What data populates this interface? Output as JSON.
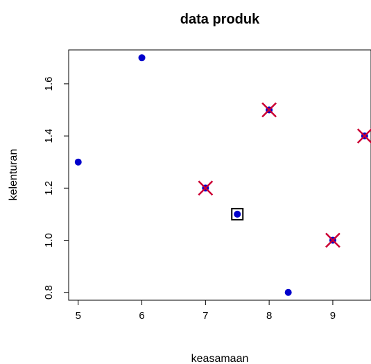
{
  "chart_data": {
    "type": "scatter",
    "title": "data produk",
    "xlabel": "keasamaan",
    "ylabel": "kelenturan",
    "xlim": [
      4.85,
      9.6
    ],
    "ylim": [
      0.77,
      1.73
    ],
    "xticks": [
      "5",
      "6",
      "7",
      "8",
      "9"
    ],
    "yticks": [
      "0.8",
      "1.0",
      "1.2",
      "1.4",
      "1.6"
    ],
    "grid": false,
    "point_color": "#0000cc",
    "marker_color": "#cc0033",
    "box_color": "#000000",
    "points": [
      {
        "x": 5.0,
        "y": 1.3,
        "mark": "none"
      },
      {
        "x": 6.0,
        "y": 1.7,
        "mark": "none"
      },
      {
        "x": 7.0,
        "y": 1.2,
        "mark": "cross"
      },
      {
        "x": 7.5,
        "y": 1.1,
        "mark": "box"
      },
      {
        "x": 8.0,
        "y": 1.5,
        "mark": "cross"
      },
      {
        "x": 8.3,
        "y": 0.8,
        "mark": "none"
      },
      {
        "x": 9.0,
        "y": 1.0,
        "mark": "cross"
      },
      {
        "x": 9.5,
        "y": 1.4,
        "mark": "cross"
      }
    ]
  }
}
